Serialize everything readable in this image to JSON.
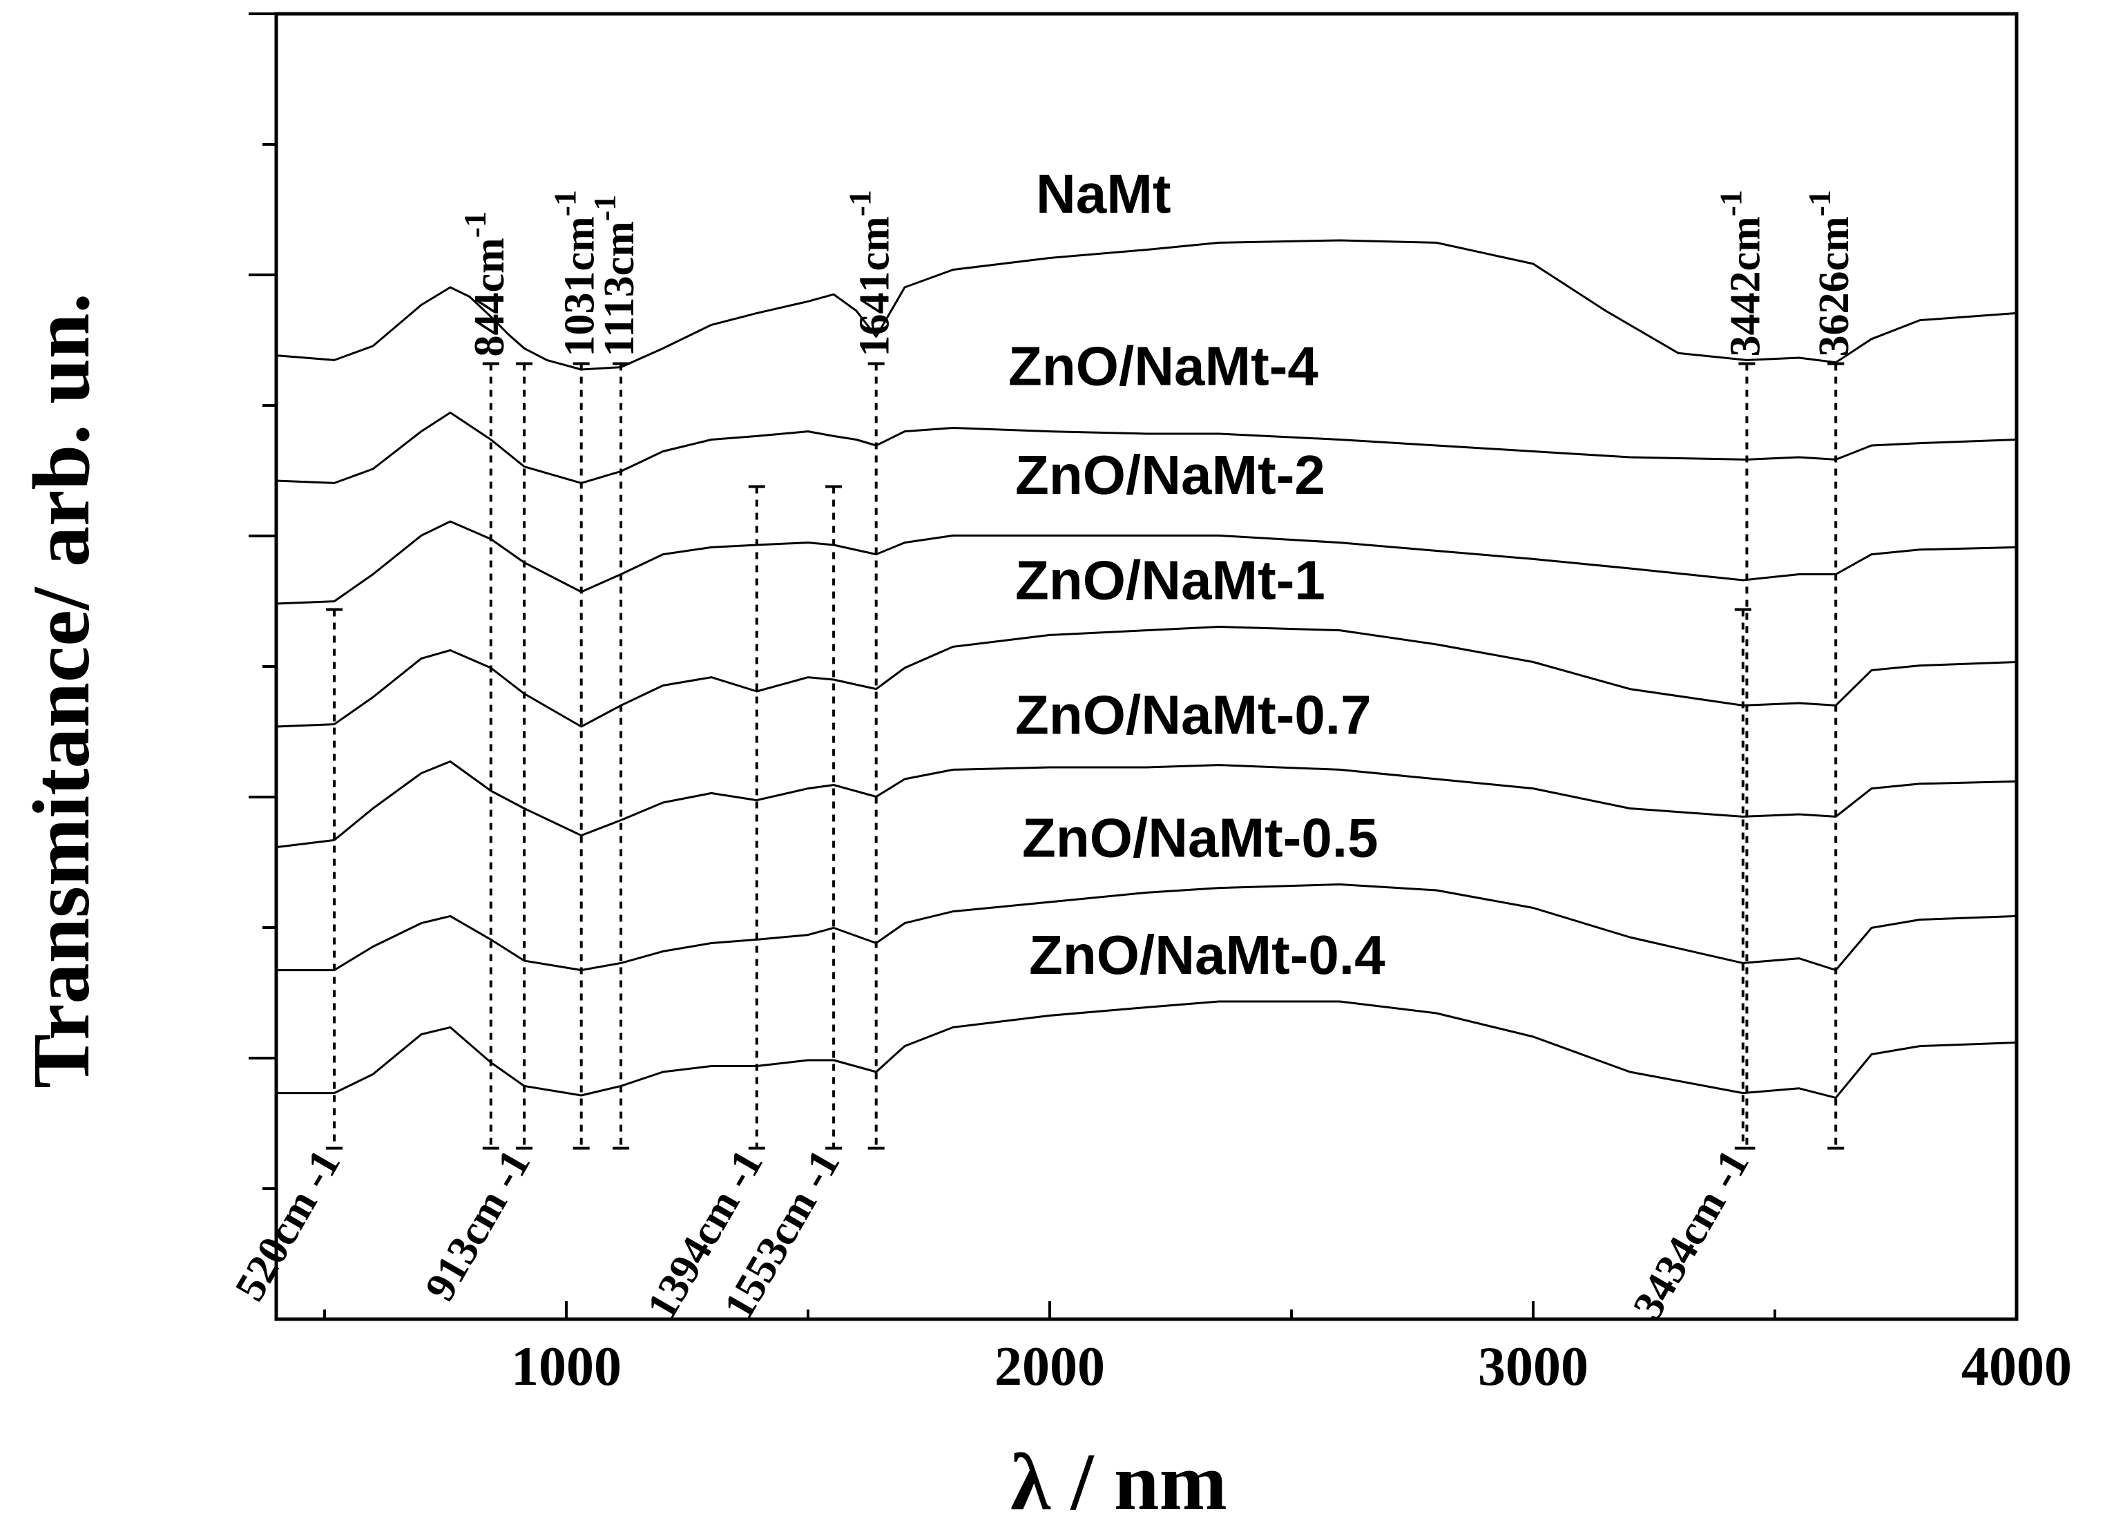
{
  "chart_data": {
    "type": "line",
    "title": "",
    "xlabel": "λ / nm",
    "ylabel": "Transmitance/ arb. un.",
    "xlim": [
      400,
      4000
    ],
    "x_ticks": [
      1000,
      2000,
      3000,
      4000
    ],
    "y_tick_count": 5,
    "grid": false,
    "series": [
      {
        "name": "NaMt",
        "offset": 6.0,
        "points": [
          [
            400,
            0.22
          ],
          [
            520,
            0.18
          ],
          [
            600,
            0.3
          ],
          [
            700,
            0.65
          ],
          [
            760,
            0.8
          ],
          [
            800,
            0.72
          ],
          [
            844,
            0.55
          ],
          [
            880,
            0.4
          ],
          [
            913,
            0.28
          ],
          [
            960,
            0.18
          ],
          [
            1031,
            0.1
          ],
          [
            1113,
            0.12
          ],
          [
            1200,
            0.28
          ],
          [
            1300,
            0.48
          ],
          [
            1394,
            0.58
          ],
          [
            1500,
            0.68
          ],
          [
            1553,
            0.74
          ],
          [
            1600,
            0.6
          ],
          [
            1641,
            0.38
          ],
          [
            1700,
            0.8
          ],
          [
            1800,
            0.95
          ],
          [
            2000,
            1.05
          ],
          [
            2200,
            1.12
          ],
          [
            2350,
            1.18
          ],
          [
            2600,
            1.2
          ],
          [
            2800,
            1.18
          ],
          [
            3000,
            1.0
          ],
          [
            3150,
            0.6
          ],
          [
            3300,
            0.24
          ],
          [
            3442,
            0.18
          ],
          [
            3550,
            0.2
          ],
          [
            3626,
            0.16
          ],
          [
            3700,
            0.36
          ],
          [
            3800,
            0.52
          ],
          [
            4000,
            0.58
          ]
        ]
      },
      {
        "name": "ZnO/NaMt-4",
        "offset": 5.0,
        "points": [
          [
            400,
            0.2
          ],
          [
            520,
            0.18
          ],
          [
            600,
            0.3
          ],
          [
            700,
            0.62
          ],
          [
            760,
            0.78
          ],
          [
            844,
            0.55
          ],
          [
            913,
            0.32
          ],
          [
            1031,
            0.18
          ],
          [
            1113,
            0.28
          ],
          [
            1200,
            0.45
          ],
          [
            1300,
            0.55
          ],
          [
            1394,
            0.58
          ],
          [
            1500,
            0.62
          ],
          [
            1553,
            0.58
          ],
          [
            1600,
            0.55
          ],
          [
            1641,
            0.5
          ],
          [
            1700,
            0.62
          ],
          [
            1800,
            0.65
          ],
          [
            2000,
            0.62
          ],
          [
            2200,
            0.6
          ],
          [
            2350,
            0.6
          ],
          [
            2600,
            0.55
          ],
          [
            2800,
            0.5
          ],
          [
            3000,
            0.45
          ],
          [
            3200,
            0.4
          ],
          [
            3442,
            0.38
          ],
          [
            3550,
            0.4
          ],
          [
            3626,
            0.38
          ],
          [
            3700,
            0.5
          ],
          [
            3800,
            0.52
          ],
          [
            4000,
            0.55
          ]
        ]
      },
      {
        "name": "ZnO/NaMt-2",
        "offset": 4.0,
        "points": [
          [
            400,
            0.2
          ],
          [
            520,
            0.22
          ],
          [
            600,
            0.45
          ],
          [
            700,
            0.78
          ],
          [
            760,
            0.9
          ],
          [
            844,
            0.75
          ],
          [
            913,
            0.55
          ],
          [
            1031,
            0.3
          ],
          [
            1113,
            0.45
          ],
          [
            1200,
            0.62
          ],
          [
            1300,
            0.68
          ],
          [
            1394,
            0.7
          ],
          [
            1500,
            0.72
          ],
          [
            1553,
            0.7
          ],
          [
            1641,
            0.62
          ],
          [
            1700,
            0.72
          ],
          [
            1800,
            0.78
          ],
          [
            2000,
            0.78
          ],
          [
            2200,
            0.78
          ],
          [
            2350,
            0.78
          ],
          [
            2600,
            0.72
          ],
          [
            2800,
            0.65
          ],
          [
            3000,
            0.58
          ],
          [
            3200,
            0.5
          ],
          [
            3434,
            0.4
          ],
          [
            3550,
            0.45
          ],
          [
            3626,
            0.45
          ],
          [
            3700,
            0.62
          ],
          [
            3800,
            0.66
          ],
          [
            4000,
            0.68
          ]
        ]
      },
      {
        "name": "ZnO/NaMt-1",
        "offset": 3.0,
        "points": [
          [
            400,
            0.2
          ],
          [
            520,
            0.22
          ],
          [
            600,
            0.45
          ],
          [
            700,
            0.78
          ],
          [
            760,
            0.85
          ],
          [
            844,
            0.7
          ],
          [
            913,
            0.48
          ],
          [
            1031,
            0.2
          ],
          [
            1113,
            0.38
          ],
          [
            1200,
            0.55
          ],
          [
            1300,
            0.62
          ],
          [
            1394,
            0.5
          ],
          [
            1500,
            0.62
          ],
          [
            1553,
            0.6
          ],
          [
            1641,
            0.52
          ],
          [
            1700,
            0.7
          ],
          [
            1800,
            0.88
          ],
          [
            2000,
            0.98
          ],
          [
            2200,
            1.02
          ],
          [
            2350,
            1.05
          ],
          [
            2600,
            1.02
          ],
          [
            2800,
            0.9
          ],
          [
            3000,
            0.75
          ],
          [
            3200,
            0.52
          ],
          [
            3434,
            0.38
          ],
          [
            3550,
            0.4
          ],
          [
            3626,
            0.38
          ],
          [
            3700,
            0.68
          ],
          [
            3800,
            0.72
          ],
          [
            4000,
            0.75
          ]
        ]
      },
      {
        "name": "ZnO/NaMt-0.7",
        "offset": 2.0,
        "points": [
          [
            400,
            0.22
          ],
          [
            520,
            0.28
          ],
          [
            600,
            0.55
          ],
          [
            700,
            0.85
          ],
          [
            760,
            0.95
          ],
          [
            844,
            0.7
          ],
          [
            913,
            0.55
          ],
          [
            1031,
            0.32
          ],
          [
            1113,
            0.45
          ],
          [
            1200,
            0.6
          ],
          [
            1300,
            0.68
          ],
          [
            1394,
            0.62
          ],
          [
            1500,
            0.72
          ],
          [
            1553,
            0.75
          ],
          [
            1641,
            0.65
          ],
          [
            1700,
            0.8
          ],
          [
            1800,
            0.88
          ],
          [
            2000,
            0.9
          ],
          [
            2200,
            0.9
          ],
          [
            2350,
            0.92
          ],
          [
            2600,
            0.88
          ],
          [
            2800,
            0.8
          ],
          [
            3000,
            0.72
          ],
          [
            3200,
            0.55
          ],
          [
            3434,
            0.48
          ],
          [
            3550,
            0.5
          ],
          [
            3626,
            0.48
          ],
          [
            3700,
            0.72
          ],
          [
            3800,
            0.76
          ],
          [
            4000,
            0.78
          ]
        ]
      },
      {
        "name": "ZnO/NaMt-0.5",
        "offset": 1.0,
        "points": [
          [
            400,
            0.22
          ],
          [
            520,
            0.22
          ],
          [
            600,
            0.42
          ],
          [
            700,
            0.62
          ],
          [
            760,
            0.68
          ],
          [
            844,
            0.48
          ],
          [
            913,
            0.3
          ],
          [
            1031,
            0.22
          ],
          [
            1113,
            0.28
          ],
          [
            1200,
            0.38
          ],
          [
            1300,
            0.45
          ],
          [
            1394,
            0.48
          ],
          [
            1500,
            0.52
          ],
          [
            1553,
            0.58
          ],
          [
            1641,
            0.45
          ],
          [
            1700,
            0.62
          ],
          [
            1800,
            0.72
          ],
          [
            2000,
            0.8
          ],
          [
            2200,
            0.88
          ],
          [
            2350,
            0.92
          ],
          [
            2600,
            0.95
          ],
          [
            2800,
            0.9
          ],
          [
            3000,
            0.75
          ],
          [
            3200,
            0.5
          ],
          [
            3434,
            0.28
          ],
          [
            3550,
            0.32
          ],
          [
            3626,
            0.22
          ],
          [
            3700,
            0.58
          ],
          [
            3800,
            0.65
          ],
          [
            4000,
            0.68
          ]
        ]
      },
      {
        "name": "ZnO/NaMt-0.4",
        "offset": 0.0,
        "points": [
          [
            400,
            0.22
          ],
          [
            520,
            0.22
          ],
          [
            600,
            0.38
          ],
          [
            700,
            0.72
          ],
          [
            760,
            0.78
          ],
          [
            844,
            0.48
          ],
          [
            913,
            0.28
          ],
          [
            1031,
            0.2
          ],
          [
            1113,
            0.28
          ],
          [
            1200,
            0.4
          ],
          [
            1300,
            0.45
          ],
          [
            1394,
            0.45
          ],
          [
            1500,
            0.5
          ],
          [
            1553,
            0.5
          ],
          [
            1641,
            0.4
          ],
          [
            1700,
            0.62
          ],
          [
            1800,
            0.78
          ],
          [
            2000,
            0.88
          ],
          [
            2200,
            0.95
          ],
          [
            2350,
            1.0
          ],
          [
            2600,
            1.0
          ],
          [
            2800,
            0.9
          ],
          [
            3000,
            0.7
          ],
          [
            3200,
            0.4
          ],
          [
            3434,
            0.22
          ],
          [
            3550,
            0.26
          ],
          [
            3626,
            0.18
          ],
          [
            3700,
            0.55
          ],
          [
            3800,
            0.62
          ],
          [
            4000,
            0.65
          ]
        ]
      }
    ],
    "annotations": [
      {
        "label": "844cm",
        "sup": "-1",
        "x": 844,
        "side": "top",
        "from": 6.0,
        "to": 0.0
      },
      {
        "label": "1031cm",
        "sup": "-1",
        "x": 1031,
        "side": "top",
        "from": 6.0,
        "to": 0.0
      },
      {
        "label": "1113cm",
        "sup": "-1",
        "x": 1113,
        "side": "top",
        "from": 6.0,
        "to": 0.0
      },
      {
        "label": "1641cm",
        "sup": "-1",
        "x": 1641,
        "side": "top",
        "from": 6.0,
        "to": 0.0
      },
      {
        "label": "3442cm",
        "sup": "-1",
        "x": 3442,
        "side": "top",
        "from": 6.0,
        "to": 0.0
      },
      {
        "label": "3626cm",
        "sup": "-1",
        "x": 3626,
        "side": "top",
        "from": 6.0,
        "to": 0.0
      },
      {
        "label": "520cm -1",
        "x": 520,
        "side": "bottom",
        "from": 4.0,
        "to": 0.0
      },
      {
        "label": "913cm -1",
        "x": 913,
        "side": "bottom",
        "from": 6.0,
        "to": 0.0
      },
      {
        "label": "1394cm -1",
        "x": 1394,
        "side": "bottom",
        "from": 5.0,
        "to": 0.0
      },
      {
        "label": "1553cm -1",
        "x": 1553,
        "side": "bottom",
        "from": 5.0,
        "to": 0.0
      },
      {
        "label": "3434cm -1",
        "x": 3434,
        "side": "bottom",
        "from": 4.0,
        "to": 0.0
      }
    ]
  }
}
